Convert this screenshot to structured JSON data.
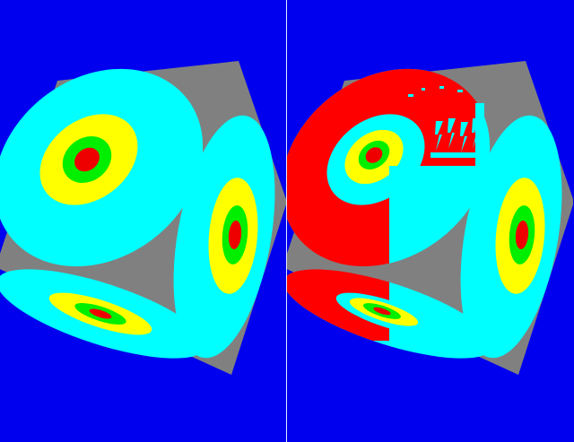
{
  "colors": {
    "background": "#0000ee",
    "cube": "#808080",
    "ring_outer": "#00ffff",
    "ring_2": "#ffff00",
    "ring_3": "#00ee00",
    "ring_center": "#ee0000",
    "overlay_red": "#ff0000",
    "divider": "#e8e8ff"
  },
  "viewports": {
    "left": {
      "caption": ""
    },
    "right": {
      "caption": ""
    }
  }
}
